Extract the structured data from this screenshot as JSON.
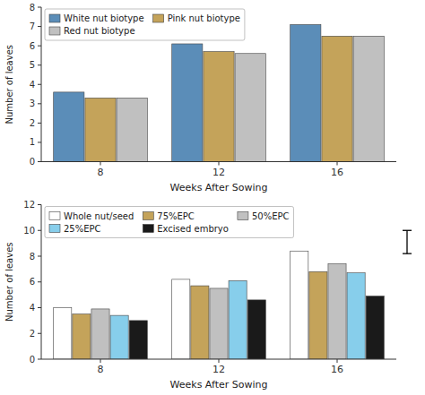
{
  "chart_data": [
    {
      "type": "bar",
      "x_label": "Weeks After Sowing",
      "y_label": "Number of leaves",
      "categories": [
        "8",
        "12",
        "16"
      ],
      "series": [
        {
          "name": "White nut biotype",
          "color": "#5B8DB8",
          "values": [
            3.6,
            6.1,
            7.1
          ]
        },
        {
          "name": "Pink nut biotype",
          "color": "#C4A35A",
          "values": [
            3.3,
            5.7,
            6.5
          ]
        },
        {
          "name": "Red nut biotype",
          "color": "#C0C0C0",
          "values": [
            3.3,
            5.6,
            6.5
          ]
        }
      ],
      "ylim": [
        0,
        8
      ],
      "yticks": [
        0,
        1,
        2,
        3,
        4,
        5,
        6,
        7,
        8
      ],
      "grid": false,
      "legend": "upper left"
    },
    {
      "type": "bar",
      "x_label": "Weeks After Sowing",
      "y_label": "Number of leaves",
      "categories": [
        "8",
        "12",
        "16"
      ],
      "series": [
        {
          "name": "Whole nut/seed",
          "color": "#ffffff",
          "values": [
            4.0,
            6.2,
            8.4
          ]
        },
        {
          "name": "75%EPC",
          "color": "#C4A35A",
          "values": [
            3.5,
            5.7,
            6.8
          ]
        },
        {
          "name": "50%EPC",
          "color": "#C0C0C0",
          "values": [
            3.9,
            5.5,
            7.4
          ]
        },
        {
          "name": "25%EPC",
          "color": "#87CEEB",
          "values": [
            3.4,
            6.1,
            6.7
          ]
        },
        {
          "name": "Excised embryo",
          "color": "#1a1a1a",
          "values": [
            3.0,
            4.6,
            4.9
          ]
        }
      ],
      "ylim": [
        0,
        12
      ],
      "yticks": [
        0,
        2,
        4,
        6,
        8,
        10,
        12
      ],
      "grid": false,
      "legend": "upper left",
      "lsd_bar": {
        "y_low": 8.2,
        "y_high": 10.0
      }
    }
  ]
}
